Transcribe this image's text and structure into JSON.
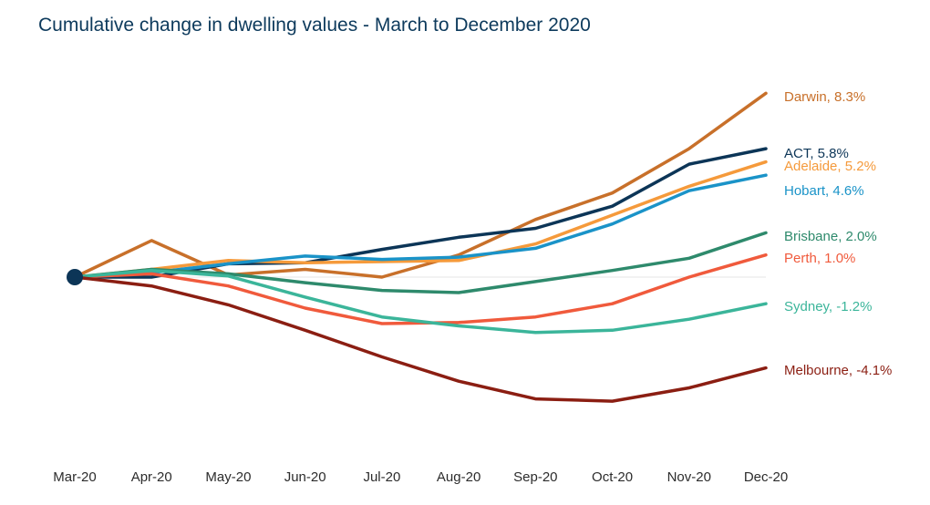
{
  "chart_data": {
    "type": "line",
    "title": "Cumulative change in dwelling values - March to December 2020",
    "categories": [
      "Mar-20",
      "Apr-20",
      "May-20",
      "Jun-20",
      "Jul-20",
      "Aug-20",
      "Sep-20",
      "Oct-20",
      "Nov-20",
      "Dec-20"
    ],
    "xlabel": "",
    "ylabel": "",
    "ylim": [
      -6.5,
      9.5
    ],
    "grid": false,
    "legend": "direct labels at line ends (right)",
    "series": [
      {
        "key": "darwin",
        "label": "Darwin, 8.3%",
        "color": "#c8702a",
        "values": [
          0,
          1.65,
          0.1,
          0.35,
          0.0,
          1.0,
          2.6,
          3.8,
          5.8,
          8.3
        ]
      },
      {
        "key": "act",
        "label": "ACT, 5.8%",
        "color": "#0c3557",
        "values": [
          0,
          0.0,
          0.6,
          0.65,
          1.25,
          1.8,
          2.2,
          3.2,
          5.1,
          5.8
        ]
      },
      {
        "key": "adelaide",
        "label": "Adelaide, 5.2%",
        "color": "#f59a3b",
        "values": [
          0,
          0.35,
          0.75,
          0.65,
          0.7,
          0.75,
          1.5,
          2.8,
          4.1,
          5.2
        ]
      },
      {
        "key": "hobart",
        "label": "Hobart, 4.6%",
        "color": "#1a93c8",
        "values": [
          0,
          0.2,
          0.6,
          0.95,
          0.8,
          0.9,
          1.3,
          2.4,
          3.9,
          4.6
        ]
      },
      {
        "key": "brisbane",
        "label": "Brisbane, 2.0%",
        "color": "#2e8a6c",
        "values": [
          0,
          0.35,
          0.15,
          -0.25,
          -0.6,
          -0.7,
          -0.2,
          0.3,
          0.85,
          2.0
        ]
      },
      {
        "key": "perth",
        "label": "Perth, 1.0%",
        "color": "#f05a3c",
        "values": [
          0,
          0.15,
          -0.4,
          -1.4,
          -2.1,
          -2.05,
          -1.8,
          -1.2,
          0.0,
          1.0
        ]
      },
      {
        "key": "sydney",
        "label": "Sydney, -1.2%",
        "color": "#3bb59a",
        "values": [
          0,
          0.3,
          0.05,
          -0.9,
          -1.8,
          -2.2,
          -2.5,
          -2.4,
          -1.9,
          -1.2
        ]
      },
      {
        "key": "melbourne",
        "label": "Melbourne, -4.1%",
        "color": "#8b1e12",
        "values": [
          0,
          -0.4,
          -1.25,
          -2.4,
          -3.6,
          -4.7,
          -5.5,
          -5.6,
          -5.0,
          -4.1
        ]
      }
    ]
  }
}
